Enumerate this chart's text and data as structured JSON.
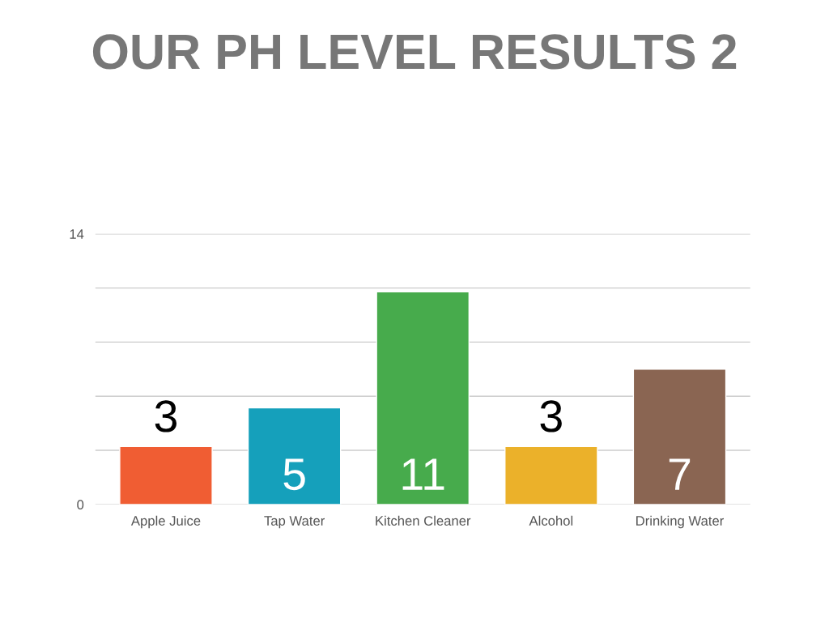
{
  "chart_data": {
    "type": "bar",
    "title": "OUR PH LEVEL RESULTS 2",
    "categories": [
      "Apple Juice",
      "Tap Water",
      "Kitchen Cleaner",
      "Alcohol",
      "Drinking Water"
    ],
    "values": [
      3,
      5,
      11,
      3,
      7
    ],
    "colors": [
      "#f05d33",
      "#15a0bb",
      "#47ab4c",
      "#ebb12a",
      "#8a6552"
    ],
    "ylim": [
      0,
      14
    ],
    "yticks": [
      0,
      {
        "value": 2.8,
        "label": null
      },
      {
        "value": 5.6,
        "label": null
      },
      {
        "value": 8.4,
        "label": null
      },
      {
        "value": 11.2,
        "label": null
      },
      14
    ],
    "grid": "y",
    "data_labels": true
  }
}
